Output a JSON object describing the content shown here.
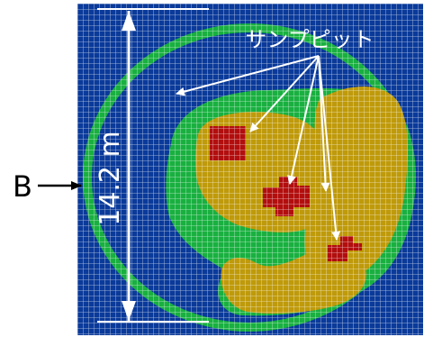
{
  "labels": {
    "side_marker": "B",
    "pit_label": "サンプピット",
    "dimension": "14.2 m"
  },
  "colors": {
    "outer": "#0a3a9a",
    "ring": "#19b040",
    "core": "#bf9a0a",
    "hotspot": "#b20e0e",
    "grid": "#ffffff",
    "annotation": "#ffffff",
    "marker": "#000000"
  }
}
